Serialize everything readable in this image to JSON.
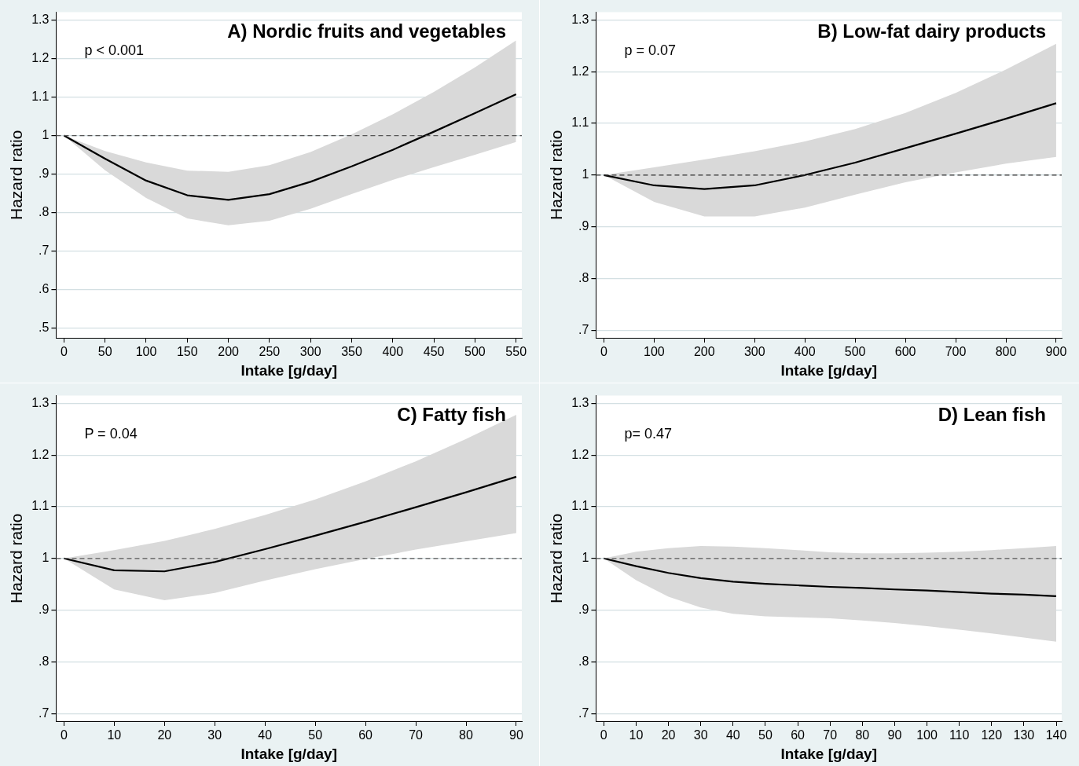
{
  "chart_data": [
    {
      "type": "line",
      "title": "A) Nordic fruits and vegetables",
      "xlabel": "Intake [g/day]",
      "ylabel": "Hazard ratio",
      "annotations": [
        "p < 0.001"
      ],
      "x": [
        0,
        50,
        100,
        150,
        200,
        250,
        300,
        350,
        400,
        450,
        500,
        550
      ],
      "series": [
        {
          "color": "#000000",
          "values": [
            1.0,
            0.94,
            0.883,
            0.845,
            0.833,
            0.848,
            0.88,
            0.92,
            0.963,
            1.01,
            1.058,
            1.107
          ],
          "upper": [
            1.0,
            0.96,
            0.93,
            0.909,
            0.906,
            0.923,
            0.957,
            1.003,
            1.055,
            1.113,
            1.177,
            1.247
          ],
          "lower": [
            1.0,
            0.91,
            0.838,
            0.785,
            0.767,
            0.779,
            0.81,
            0.848,
            0.885,
            0.918,
            0.95,
            0.983
          ]
        }
      ],
      "xlim": [
        -9.5,
        557
      ],
      "xticks": [
        0,
        50,
        100,
        150,
        200,
        250,
        300,
        350,
        400,
        450,
        500,
        550
      ],
      "ylim": [
        0.475,
        1.32
      ],
      "yticks": [
        {
          "value": 0.5,
          "label": ".5"
        },
        {
          "value": 0.6,
          "label": ".6"
        },
        {
          "value": 0.7,
          "label": ".7"
        },
        {
          "value": 0.8,
          "label": ".8"
        },
        {
          "value": 0.9,
          "label": ".9"
        },
        1,
        1.1,
        1.2,
        1.3
      ],
      "ref_lines": [
        {
          "axis": "y",
          "value": 1,
          "color": "#555555",
          "line_style": "dashed"
        }
      ],
      "grid": "y",
      "legend": false,
      "marker": "none"
    },
    {
      "type": "line",
      "title": "B) Low-fat dairy products",
      "xlabel": "Intake [g/day]",
      "ylabel": "Hazard ratio",
      "annotations": [
        "p = 0.07"
      ],
      "x": [
        0,
        100,
        200,
        300,
        400,
        500,
        600,
        700,
        800,
        900
      ],
      "series": [
        {
          "color": "#000000",
          "values": [
            1.0,
            0.98,
            0.973,
            0.98,
            1.0,
            1.024,
            1.052,
            1.08,
            1.109,
            1.139
          ],
          "upper": [
            1.0,
            1.015,
            1.03,
            1.046,
            1.065,
            1.089,
            1.12,
            1.159,
            1.204,
            1.254
          ],
          "lower": [
            1.0,
            0.948,
            0.92,
            0.92,
            0.937,
            0.962,
            0.986,
            1.005,
            1.022,
            1.035
          ]
        }
      ],
      "xlim": [
        -15.6,
        911
      ],
      "xticks": [
        0,
        100,
        200,
        300,
        400,
        500,
        600,
        700,
        800,
        900
      ],
      "ylim": [
        0.685,
        1.315
      ],
      "yticks": [
        {
          "value": 0.7,
          "label": ".7"
        },
        {
          "value": 0.8,
          "label": ".8"
        },
        {
          "value": 0.9,
          "label": ".9"
        },
        1,
        1.1,
        1.2,
        1.3
      ],
      "ref_lines": [
        {
          "axis": "y",
          "value": 1,
          "color": "#333333",
          "line_style": "dashed"
        }
      ],
      "grid": "y",
      "legend": false,
      "marker": "none"
    },
    {
      "type": "line",
      "title": "C) Fatty fish",
      "xlabel": "Intake [g/day]",
      "ylabel": "Hazard ratio",
      "annotations": [
        "P = 0.04"
      ],
      "x": [
        0,
        10,
        20,
        30,
        40,
        50,
        60,
        70,
        80,
        90
      ],
      "series": [
        {
          "color": "#000000",
          "values": [
            1.0,
            0.977,
            0.975,
            0.993,
            1.018,
            1.044,
            1.071,
            1.099,
            1.128,
            1.158
          ],
          "upper": [
            1.0,
            1.016,
            1.034,
            1.057,
            1.084,
            1.114,
            1.149,
            1.188,
            1.231,
            1.278
          ],
          "lower": [
            1.0,
            0.94,
            0.919,
            0.933,
            0.957,
            0.979,
            0.999,
            1.017,
            1.033,
            1.049
          ]
        }
      ],
      "xlim": [
        -1.55,
        91.1
      ],
      "xticks": [
        0,
        10,
        20,
        30,
        40,
        50,
        60,
        70,
        80,
        90
      ],
      "ylim": [
        0.685,
        1.315
      ],
      "yticks": [
        {
          "value": 0.7,
          "label": ".7"
        },
        {
          "value": 0.8,
          "label": ".8"
        },
        {
          "value": 0.9,
          "label": ".9"
        },
        1,
        1.1,
        1.2,
        1.3
      ],
      "ref_lines": [
        {
          "axis": "y",
          "value": 1,
          "color": "#555555",
          "line_style": "dashed"
        }
      ],
      "grid": "y",
      "legend": false,
      "marker": "none"
    },
    {
      "type": "line",
      "title": "D) Lean fish",
      "xlabel": "Intake [g/day]",
      "ylabel": "Hazard ratio",
      "annotations": [
        "p= 0.47"
      ],
      "x": [
        0,
        10,
        20,
        30,
        40,
        50,
        60,
        70,
        80,
        90,
        100,
        110,
        120,
        130,
        140
      ],
      "series": [
        {
          "color": "#000000",
          "values": [
            1.0,
            0.985,
            0.972,
            0.962,
            0.955,
            0.951,
            0.948,
            0.945,
            0.943,
            0.94,
            0.938,
            0.935,
            0.932,
            0.93,
            0.927
          ],
          "upper": [
            1.0,
            1.013,
            1.02,
            1.024,
            1.023,
            1.02,
            1.016,
            1.012,
            1.01,
            1.01,
            1.011,
            1.013,
            1.016,
            1.02,
            1.024
          ],
          "lower": [
            1.0,
            0.958,
            0.926,
            0.905,
            0.893,
            0.888,
            0.886,
            0.884,
            0.88,
            0.875,
            0.869,
            0.862,
            0.855,
            0.847,
            0.839
          ]
        }
      ],
      "xlim": [
        -2.4,
        141.7
      ],
      "xticks": [
        0,
        10,
        20,
        30,
        40,
        50,
        60,
        70,
        80,
        90,
        100,
        110,
        120,
        130,
        140
      ],
      "ylim": [
        0.685,
        1.315
      ],
      "yticks": [
        {
          "value": 0.7,
          "label": ".7"
        },
        {
          "value": 0.8,
          "label": ".8"
        },
        {
          "value": 0.9,
          "label": ".9"
        },
        1,
        1.1,
        1.2,
        1.3
      ],
      "ref_lines": [
        {
          "axis": "y",
          "value": 1,
          "color": "#555555",
          "line_style": "dashed"
        }
      ],
      "grid": "y",
      "legend": false,
      "marker": "none"
    }
  ]
}
